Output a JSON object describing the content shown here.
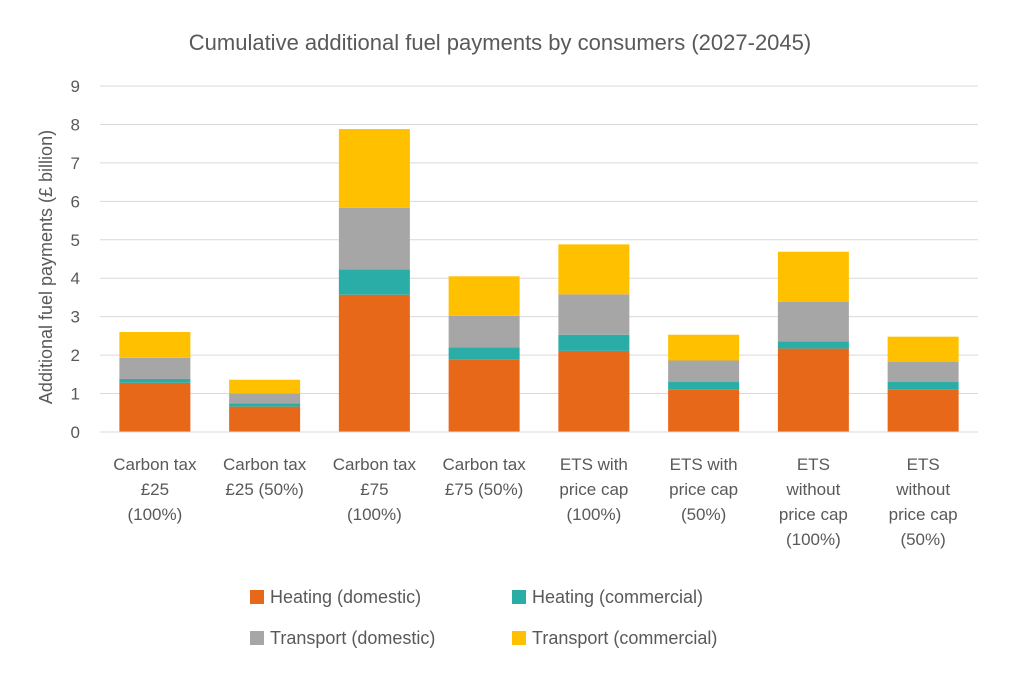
{
  "chart_data": {
    "type": "bar",
    "stacked": true,
    "title": "Cumulative additional fuel payments by consumers (2027-2045)",
    "xlabel": "",
    "ylabel": "Additional fuel payments (£ billion)",
    "ylim": [
      0,
      9
    ],
    "yticks": [
      "0",
      "1",
      "2",
      "3",
      "4",
      "5",
      "6",
      "7",
      "8",
      "9"
    ],
    "grid": true,
    "legend_position": "bottom",
    "categories": [
      [
        "Carbon tax",
        "£25",
        "(100%)"
      ],
      [
        "Carbon tax",
        "£25 (50%)"
      ],
      [
        "Carbon tax",
        "£75",
        "(100%)"
      ],
      [
        "Carbon tax",
        "£75 (50%)"
      ],
      [
        "ETS with",
        "price cap",
        "(100%)"
      ],
      [
        "ETS with",
        "price cap",
        "(50%)"
      ],
      [
        "ETS",
        "without",
        "price cap",
        "(100%)"
      ],
      [
        "ETS",
        "without",
        "price cap",
        "(50%)"
      ]
    ],
    "series": [
      {
        "name": "Heating (domestic)",
        "color": "#E8681A",
        "values": [
          1.28,
          0.66,
          3.57,
          1.89,
          2.11,
          1.1,
          2.17,
          1.11
        ]
      },
      {
        "name": "Heating (commercial)",
        "color": "#2AADA6",
        "values": [
          0.1,
          0.08,
          0.66,
          0.31,
          0.42,
          0.2,
          0.19,
          0.19
        ]
      },
      {
        "name": "Transport (domestic)",
        "color": "#A6A6A6",
        "values": [
          0.55,
          0.26,
          1.6,
          0.82,
          1.05,
          0.56,
          1.03,
          0.53
        ]
      },
      {
        "name": "Transport (commercial)",
        "color": "#FFC000",
        "values": [
          0.67,
          0.36,
          2.05,
          1.03,
          1.3,
          0.67,
          1.3,
          0.65
        ]
      }
    ]
  }
}
